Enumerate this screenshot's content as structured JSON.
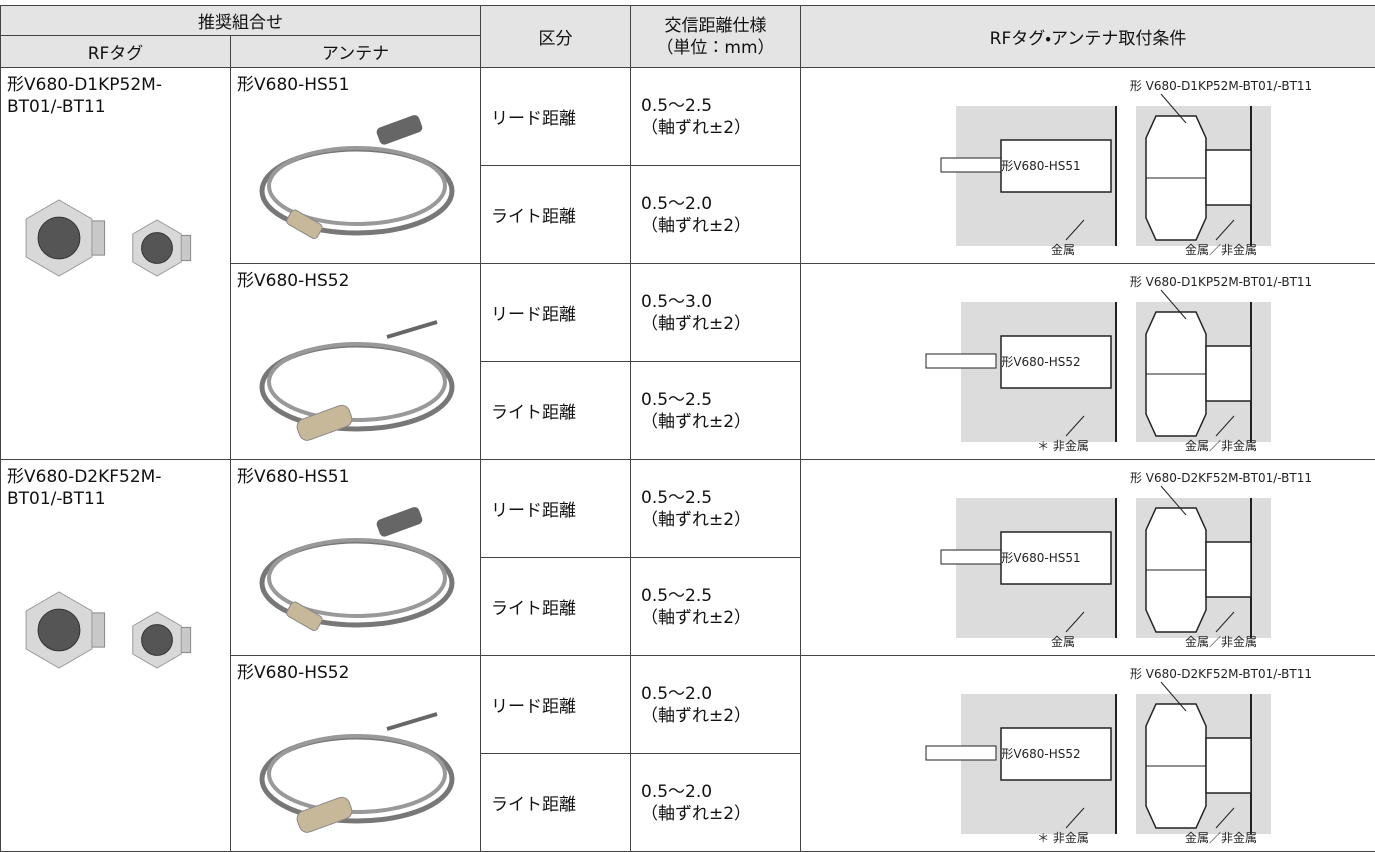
{
  "header": {
    "group": "推奨組合せ",
    "rf_tag": "RFタグ",
    "antenna": "アンテナ",
    "category": "区分",
    "distance": "交信距離仕様",
    "distance_unit": "（単位：mm）",
    "condition": "RFタグ・アンテナ取付条件"
  },
  "tags": [
    {
      "name_lines": [
        "形V680-D1KP52M-",
        "BT01/-BT11"
      ],
      "antennas": [
        {
          "name": "形V680-HS51",
          "rows": [
            {
              "category": "リード距離",
              "distance": "0.5～2.5",
              "offset": "（軸ずれ±2）"
            },
            {
              "category": "ライト距離",
              "distance": "0.5～2.0",
              "offset": "（軸ずれ±2）"
            }
          ],
          "diagram": {
            "tag_label": "形 V680-D1KP52M-BT01/-BT11",
            "antenna_label": "形V680-HS51",
            "left_label": "金属",
            "right_label": "金属／非金属"
          }
        },
        {
          "name": "形V680-HS52",
          "rows": [
            {
              "category": "リード距離",
              "distance": "0.5～3.0",
              "offset": "（軸ずれ±2）"
            },
            {
              "category": "ライト距離",
              "distance": "0.5～2.5",
              "offset": "（軸ずれ±2）"
            }
          ],
          "diagram": {
            "tag_label": "形 V680-D1KP52M-BT01/-BT11",
            "antenna_label": "形V680-HS52",
            "left_label": "＊ 非金属",
            "right_label": "金属／非金属"
          }
        }
      ]
    },
    {
      "name_lines": [
        "形V680-D2KF52M-",
        "BT01/-BT11"
      ],
      "antennas": [
        {
          "name": "形V680-HS51",
          "rows": [
            {
              "category": "リード距離",
              "distance": "0.5～2.5",
              "offset": "（軸ずれ±2）"
            },
            {
              "category": "ライト距離",
              "distance": "0.5～2.5",
              "offset": "（軸ずれ±2）"
            }
          ],
          "diagram": {
            "tag_label": "形 V680-D2KF52M-BT01/-BT11",
            "antenna_label": "形V680-HS51",
            "left_label": "金属",
            "right_label": "金属／非金属"
          }
        },
        {
          "name": "形V680-HS52",
          "rows": [
            {
              "category": "リード距離",
              "distance": "0.5～2.0",
              "offset": "（軸ずれ±2）"
            },
            {
              "category": "ライト距離",
              "distance": "0.5～2.0",
              "offset": "（軸ずれ±2）"
            }
          ],
          "diagram": {
            "tag_label": "形 V680-D2KF52M-BT01/-BT11",
            "antenna_label": "形V680-HS52",
            "left_label": "＊ 非金属",
            "right_label": "金属／非金属"
          }
        }
      ]
    }
  ]
}
